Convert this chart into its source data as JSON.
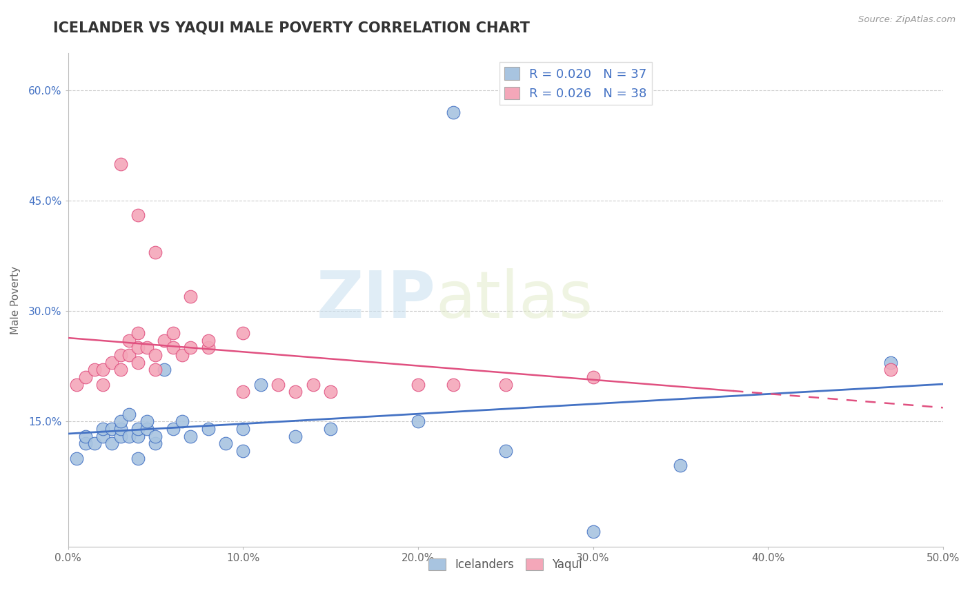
{
  "title": "ICELANDER VS YAQUI MALE POVERTY CORRELATION CHART",
  "source_text": "Source: ZipAtlas.com",
  "xlabel": "",
  "ylabel": "Male Poverty",
  "xlim": [
    0.0,
    0.5
  ],
  "ylim": [
    -0.02,
    0.65
  ],
  "xtick_labels": [
    "0.0%",
    "10.0%",
    "20.0%",
    "30.0%",
    "40.0%",
    "50.0%"
  ],
  "xtick_values": [
    0.0,
    0.1,
    0.2,
    0.3,
    0.4,
    0.5
  ],
  "ytick_labels": [
    "15.0%",
    "30.0%",
    "45.0%",
    "60.0%"
  ],
  "ytick_values": [
    0.15,
    0.3,
    0.45,
    0.6
  ],
  "icelander_color": "#a8c4e0",
  "yaqui_color": "#f4a7b9",
  "icelander_line_color": "#4472C4",
  "yaqui_line_color": "#E05080",
  "watermark_zip": "ZIP",
  "watermark_atlas": "atlas",
  "title_fontsize": 15,
  "background_color": "#ffffff",
  "icelander_x": [
    0.005,
    0.01,
    0.01,
    0.015,
    0.02,
    0.02,
    0.025,
    0.025,
    0.03,
    0.03,
    0.03,
    0.035,
    0.035,
    0.04,
    0.04,
    0.04,
    0.045,
    0.045,
    0.05,
    0.05,
    0.055,
    0.06,
    0.065,
    0.07,
    0.08,
    0.09,
    0.1,
    0.1,
    0.11,
    0.13,
    0.15,
    0.2,
    0.22,
    0.25,
    0.35,
    0.47,
    0.3
  ],
  "icelander_y": [
    0.1,
    0.12,
    0.13,
    0.12,
    0.13,
    0.14,
    0.12,
    0.14,
    0.13,
    0.14,
    0.15,
    0.13,
    0.16,
    0.13,
    0.14,
    0.1,
    0.14,
    0.15,
    0.12,
    0.13,
    0.22,
    0.14,
    0.15,
    0.13,
    0.14,
    0.12,
    0.14,
    0.11,
    0.2,
    0.13,
    0.14,
    0.15,
    0.57,
    0.11,
    0.09,
    0.23,
    0.0
  ],
  "yaqui_x": [
    0.005,
    0.01,
    0.015,
    0.02,
    0.02,
    0.025,
    0.03,
    0.03,
    0.035,
    0.035,
    0.04,
    0.04,
    0.04,
    0.045,
    0.05,
    0.05,
    0.055,
    0.06,
    0.06,
    0.065,
    0.07,
    0.08,
    0.08,
    0.1,
    0.12,
    0.13,
    0.14,
    0.15,
    0.2,
    0.22,
    0.25,
    0.3,
    0.03,
    0.04,
    0.05,
    0.07,
    0.1,
    0.47
  ],
  "yaqui_y": [
    0.2,
    0.21,
    0.22,
    0.2,
    0.22,
    0.23,
    0.22,
    0.24,
    0.24,
    0.26,
    0.23,
    0.25,
    0.27,
    0.25,
    0.22,
    0.24,
    0.26,
    0.25,
    0.27,
    0.24,
    0.25,
    0.25,
    0.26,
    0.19,
    0.2,
    0.19,
    0.2,
    0.19,
    0.2,
    0.2,
    0.2,
    0.21,
    0.5,
    0.43,
    0.38,
    0.32,
    0.27,
    0.22
  ],
  "line_xstart": 0.0,
  "line_xend": 0.5,
  "icelander_line_ystart": 0.135,
  "icelander_line_yend": 0.15,
  "yaqui_solid_xend": 0.38,
  "yaqui_line_ystart": 0.21,
  "yaqui_line_yend": 0.225,
  "yaqui_dashed_xstart": 0.38,
  "yaqui_dashed_xend": 0.5,
  "yaqui_dashed_ystart": 0.225,
  "yaqui_dashed_yend": 0.23
}
